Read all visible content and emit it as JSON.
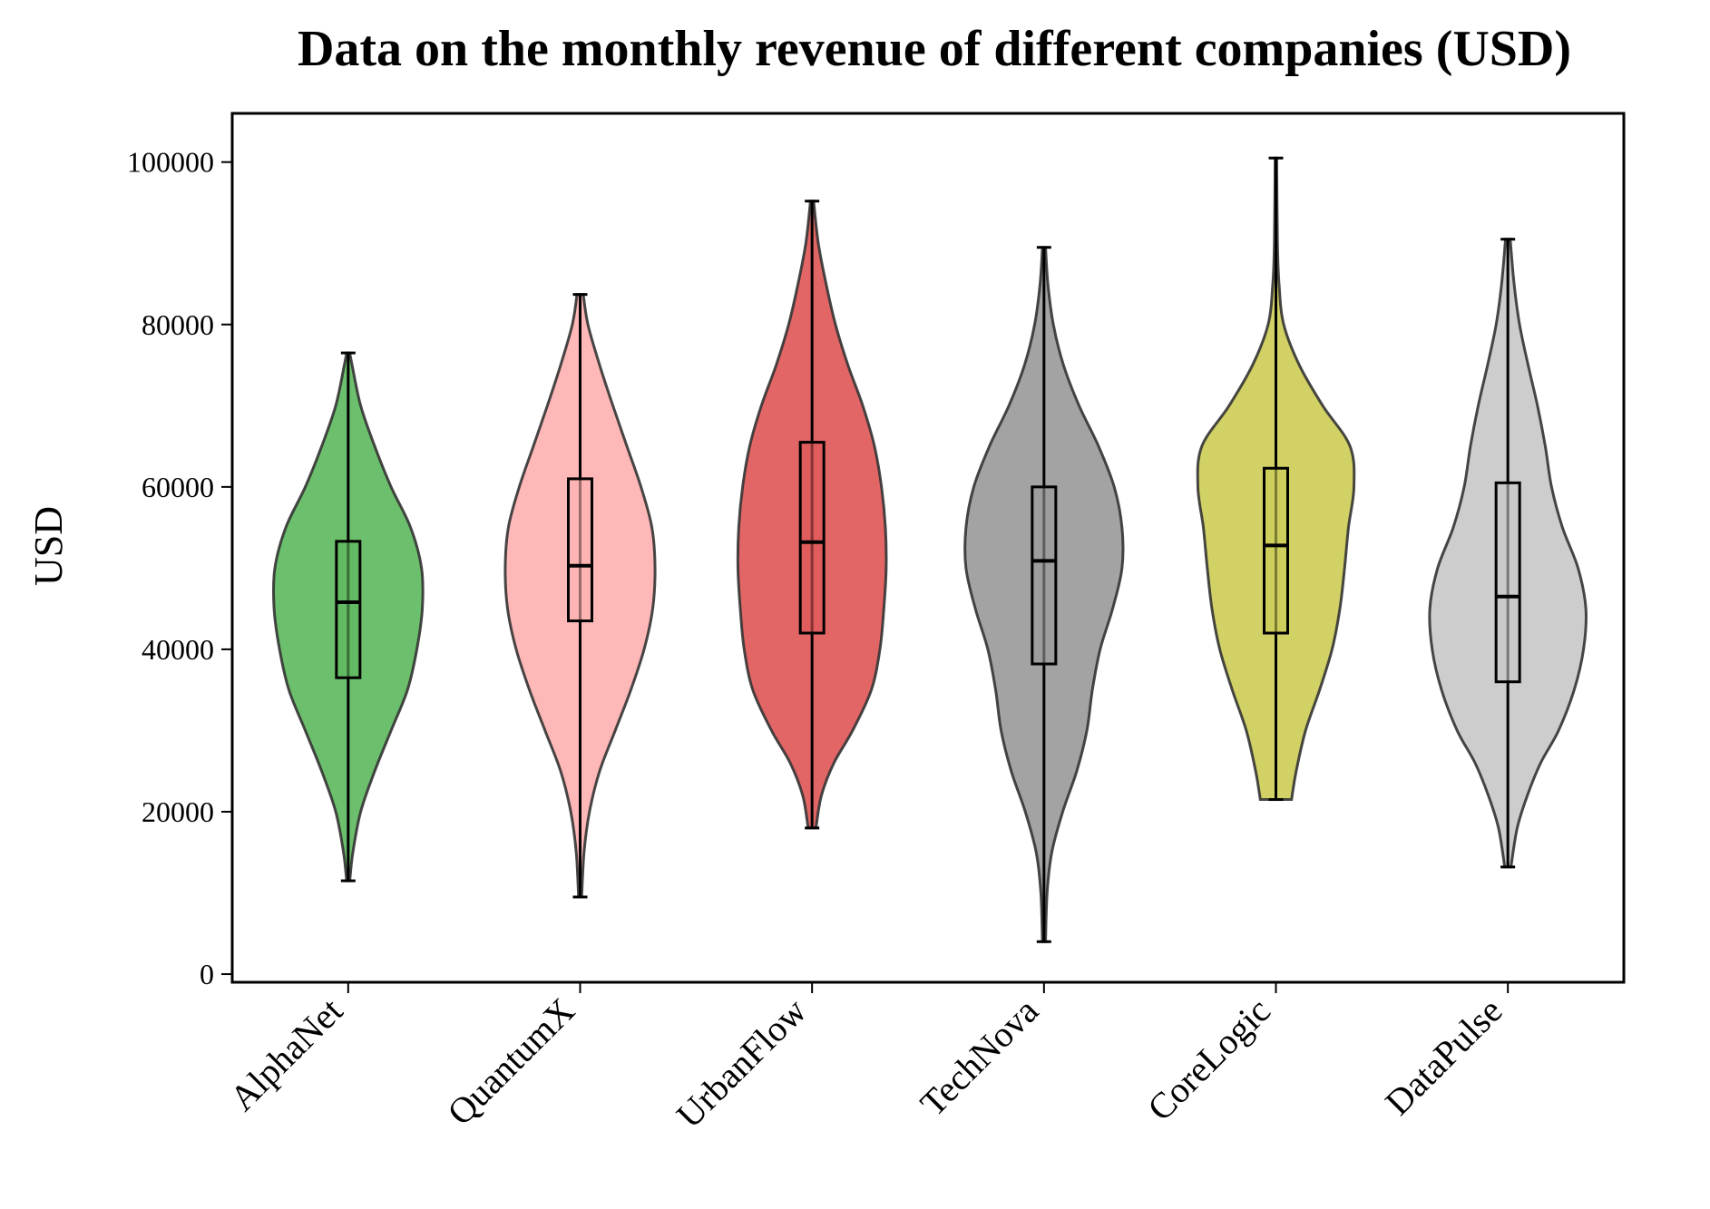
{
  "chart_data": {
    "type": "violin",
    "title": "Data on the monthly revenue of different companies (USD)",
    "xlabel": "",
    "ylabel": "USD",
    "ylim": [
      -1000,
      106000
    ],
    "yticks": [
      0,
      20000,
      40000,
      60000,
      80000,
      100000
    ],
    "ytick_labels": [
      "0",
      "20000",
      "40000",
      "60000",
      "80000",
      "100000"
    ],
    "categories": [
      "AlphaNet",
      "QuantumX",
      "UrbanFlow",
      "TechNova",
      "CoreLogic",
      "DataPulse"
    ],
    "colors": [
      "#5cb85c",
      "#ffb0b0",
      "#e05555",
      "#999999",
      "#cccc55",
      "#c8c8c8"
    ],
    "grid": false,
    "series": [
      {
        "min": 11500,
        "q1": 36500,
        "median": 45800,
        "q3": 53300,
        "max": 76500,
        "density": [
          [
            11500,
            0.02
          ],
          [
            15000,
            0.06
          ],
          [
            20000,
            0.16
          ],
          [
            25000,
            0.34
          ],
          [
            30000,
            0.55
          ],
          [
            35000,
            0.76
          ],
          [
            40000,
            0.88
          ],
          [
            45000,
            0.95
          ],
          [
            50000,
            0.94
          ],
          [
            55000,
            0.8
          ],
          [
            60000,
            0.55
          ],
          [
            65000,
            0.34
          ],
          [
            70000,
            0.16
          ],
          [
            75000,
            0.05
          ],
          [
            76500,
            0.02
          ]
        ]
      },
      {
        "min": 9500,
        "q1": 43500,
        "median": 50300,
        "q3": 61000,
        "max": 83700,
        "density": [
          [
            9500,
            0.02
          ],
          [
            15000,
            0.05
          ],
          [
            20000,
            0.12
          ],
          [
            25000,
            0.25
          ],
          [
            30000,
            0.45
          ],
          [
            35000,
            0.65
          ],
          [
            40000,
            0.82
          ],
          [
            45000,
            0.93
          ],
          [
            50000,
            0.96
          ],
          [
            55000,
            0.92
          ],
          [
            60000,
            0.78
          ],
          [
            65000,
            0.6
          ],
          [
            70000,
            0.42
          ],
          [
            75000,
            0.25
          ],
          [
            80000,
            0.1
          ],
          [
            83700,
            0.04
          ]
        ]
      },
      {
        "min": 18000,
        "q1": 42000,
        "median": 53200,
        "q3": 65500,
        "max": 95200,
        "density": [
          [
            18000,
            0.05
          ],
          [
            22000,
            0.12
          ],
          [
            26000,
            0.28
          ],
          [
            30000,
            0.52
          ],
          [
            35000,
            0.76
          ],
          [
            40000,
            0.87
          ],
          [
            45000,
            0.92
          ],
          [
            50000,
            0.95
          ],
          [
            55000,
            0.94
          ],
          [
            60000,
            0.89
          ],
          [
            65000,
            0.8
          ],
          [
            70000,
            0.65
          ],
          [
            75000,
            0.46
          ],
          [
            80000,
            0.3
          ],
          [
            85000,
            0.18
          ],
          [
            90000,
            0.08
          ],
          [
            95200,
            0.02
          ]
        ]
      },
      {
        "min": 4000,
        "q1": 38200,
        "median": 50900,
        "q3": 60000,
        "max": 89500,
        "density": [
          [
            4000,
            0.02
          ],
          [
            10000,
            0.04
          ],
          [
            15000,
            0.1
          ],
          [
            20000,
            0.24
          ],
          [
            25000,
            0.42
          ],
          [
            30000,
            0.55
          ],
          [
            35000,
            0.62
          ],
          [
            40000,
            0.72
          ],
          [
            45000,
            0.88
          ],
          [
            50000,
            1.0
          ],
          [
            55000,
            1.0
          ],
          [
            60000,
            0.9
          ],
          [
            65000,
            0.7
          ],
          [
            70000,
            0.45
          ],
          [
            75000,
            0.25
          ],
          [
            80000,
            0.12
          ],
          [
            85000,
            0.05
          ],
          [
            89500,
            0.02
          ]
        ]
      },
      {
        "min": 21500,
        "q1": 42000,
        "median": 52800,
        "q3": 62300,
        "max": 100500,
        "density": [
          [
            21500,
            0.2
          ],
          [
            25000,
            0.26
          ],
          [
            30000,
            0.38
          ],
          [
            35000,
            0.56
          ],
          [
            40000,
            0.72
          ],
          [
            45000,
            0.82
          ],
          [
            50000,
            0.88
          ],
          [
            55000,
            0.93
          ],
          [
            60000,
            1.0
          ],
          [
            65000,
            0.95
          ],
          [
            70000,
            0.6
          ],
          [
            75000,
            0.3
          ],
          [
            80000,
            0.1
          ],
          [
            85000,
            0.04
          ],
          [
            90000,
            0.02
          ],
          [
            100500,
            0.01
          ]
        ]
      },
      {
        "min": 13200,
        "q1": 36000,
        "median": 46500,
        "q3": 60500,
        "max": 90500,
        "density": [
          [
            13200,
            0.04
          ],
          [
            18000,
            0.12
          ],
          [
            22000,
            0.25
          ],
          [
            26000,
            0.42
          ],
          [
            30000,
            0.65
          ],
          [
            35000,
            0.85
          ],
          [
            40000,
            0.97
          ],
          [
            45000,
            1.0
          ],
          [
            50000,
            0.9
          ],
          [
            55000,
            0.7
          ],
          [
            60000,
            0.56
          ],
          [
            65000,
            0.48
          ],
          [
            70000,
            0.38
          ],
          [
            75000,
            0.26
          ],
          [
            80000,
            0.15
          ],
          [
            85000,
            0.08
          ],
          [
            90500,
            0.03
          ]
        ]
      }
    ]
  }
}
